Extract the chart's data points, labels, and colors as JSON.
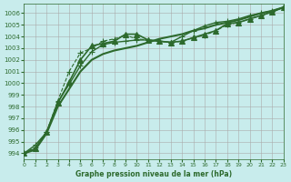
{
  "xlabel": "Graphe pression niveau de la mer (hPa)",
  "ylabel": "",
  "background_color": "#c8ecec",
  "grid_color": "#aaaaaa",
  "line_color": "#2d6a2d",
  "xlim": [
    0,
    23
  ],
  "ylim": [
    993.5,
    1006.8
  ],
  "yticks": [
    994,
    995,
    996,
    997,
    998,
    999,
    1000,
    1001,
    1002,
    1003,
    1004,
    1005,
    1006
  ],
  "xticks": [
    0,
    1,
    2,
    3,
    4,
    5,
    6,
    7,
    8,
    9,
    10,
    11,
    12,
    13,
    14,
    15,
    16,
    17,
    18,
    19,
    20,
    21,
    22,
    23
  ],
  "series": [
    {
      "x": [
        0,
        1,
        2,
        3,
        4,
        5,
        6,
        7,
        8,
        9,
        10,
        11,
        12,
        13,
        14,
        15,
        16,
        17,
        18,
        19,
        20,
        21,
        22,
        23
      ],
      "y": [
        994.0,
        994.7,
        995.8,
        998.4,
        999.9,
        1001.5,
        1002.7,
        1003.3,
        1003.5,
        1003.6,
        1003.7,
        1003.7,
        1003.6,
        1003.5,
        1004.0,
        1004.5,
        1004.9,
        1005.2,
        1005.3,
        1005.5,
        1005.8,
        1006.0,
        1006.2,
        1006.5
      ],
      "style": "-",
      "marker": "+",
      "linewidth": 1.0,
      "markersize": 4
    },
    {
      "x": [
        0,
        1,
        2,
        3,
        4,
        5,
        6,
        7,
        8,
        9,
        10,
        11,
        12,
        13,
        14,
        15,
        16,
        17,
        18,
        19,
        20,
        21,
        22,
        23
      ],
      "y": [
        994.0,
        994.5,
        995.8,
        998.5,
        1001.0,
        1002.6,
        1003.0,
        1003.6,
        1003.8,
        1004.1,
        1003.8,
        1003.7,
        1003.6,
        1003.5,
        1003.6,
        1003.9,
        1004.1,
        1004.5,
        1005.0,
        1005.2,
        1005.5,
        1005.8,
        1006.1,
        1006.5
      ],
      "style": "--",
      "marker": "+",
      "linewidth": 0.8,
      "markersize": 4
    },
    {
      "x": [
        0,
        1,
        2,
        3,
        4,
        5,
        6,
        7,
        8,
        9,
        10,
        11,
        12,
        13,
        14,
        15,
        16,
        17,
        18,
        19,
        20,
        21,
        22,
        23
      ],
      "y": [
        994.0,
        994.4,
        995.8,
        998.3,
        1000.1,
        1002.0,
        1003.2,
        1003.4,
        1003.6,
        1004.2,
        1004.2,
        1003.7,
        1003.6,
        1003.5,
        1003.6,
        1003.9,
        1004.2,
        1004.5,
        1005.1,
        1005.2,
        1005.5,
        1005.8,
        1006.1,
        1006.5
      ],
      "style": "-",
      "marker": "^",
      "linewidth": 1.2,
      "markersize": 4
    },
    {
      "x": [
        0,
        1,
        2,
        3,
        4,
        5,
        6,
        7,
        8,
        9,
        10,
        11,
        12,
        13,
        14,
        15,
        16,
        17,
        18,
        19,
        20,
        21,
        22,
        23
      ],
      "y": [
        994.0,
        994.3,
        995.7,
        998.0,
        999.5,
        1001.0,
        1002.0,
        1002.5,
        1002.8,
        1003.0,
        1003.2,
        1003.5,
        1003.8,
        1004.0,
        1004.2,
        1004.5,
        1004.7,
        1005.0,
        1005.2,
        1005.4,
        1005.7,
        1006.0,
        1006.2,
        1006.5
      ],
      "style": "-",
      "marker": null,
      "linewidth": 1.5,
      "markersize": 0
    }
  ]
}
